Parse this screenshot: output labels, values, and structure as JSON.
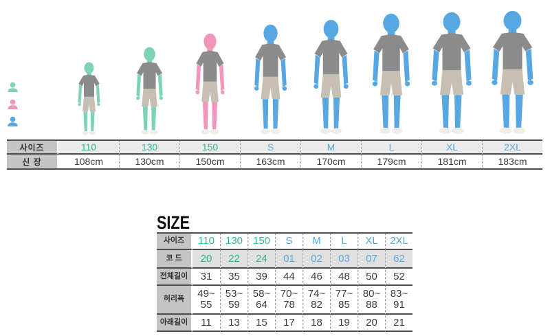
{
  "legend": {
    "items": [
      {
        "label": "아동모델",
        "icon": "child-model-icon",
        "color": "#7ed3b6"
      },
      {
        "label": "여성모델",
        "icon": "female-model-icon",
        "color": "#f395ba"
      },
      {
        "label": "남성모델",
        "icon": "male-model-icon",
        "color": "#57a7e2"
      }
    ]
  },
  "models": [
    {
      "size": "110",
      "height_cm": 108,
      "type": "child"
    },
    {
      "size": "130",
      "height_cm": 130,
      "type": "child"
    },
    {
      "size": "150",
      "height_cm": 150,
      "type": "female"
    },
    {
      "size": "S",
      "height_cm": 163,
      "type": "male"
    },
    {
      "size": "M",
      "height_cm": 170,
      "type": "male"
    },
    {
      "size": "L",
      "height_cm": 179,
      "type": "male"
    },
    {
      "size": "XL",
      "height_cm": 181,
      "type": "male"
    },
    {
      "size": "2XL",
      "height_cm": 183,
      "type": "male"
    }
  ],
  "height_table": {
    "size_row_label": "사이즈",
    "height_row_label": "신 장",
    "sizes": [
      "110",
      "130",
      "150",
      "S",
      "M",
      "L",
      "XL",
      "2XL"
    ],
    "heights": [
      "108cm",
      "130cm",
      "150cm",
      "163cm",
      "170cm",
      "179cm",
      "181cm",
      "183cm"
    ]
  },
  "size_section": {
    "title": "SIZE",
    "table": {
      "header_label": "사이즈",
      "sizes": [
        "110",
        "130",
        "150",
        "S",
        "M",
        "L",
        "XL",
        "2XL"
      ],
      "rows": [
        {
          "label": "코 드",
          "shaded": true,
          "colored": true,
          "values": [
            "20",
            "22",
            "24",
            "01",
            "02",
            "03",
            "07",
            "62"
          ]
        },
        {
          "label": "전체길이",
          "shaded": false,
          "colored": false,
          "values": [
            "31",
            "35",
            "39",
            "44",
            "46",
            "48",
            "50",
            "52"
          ]
        },
        {
          "label": "허리폭",
          "shaded": false,
          "colored": false,
          "values": [
            "49~\n55",
            "53~\n59",
            "58~\n64",
            "70~\n78",
            "74~\n82",
            "77~\n85",
            "80~\n88",
            "83~\n91"
          ]
        },
        {
          "label": "아래길이",
          "shaded": false,
          "colored": false,
          "values": [
            "11",
            "13",
            "15",
            "17",
            "18",
            "19",
            "20",
            "21"
          ]
        }
      ]
    }
  },
  "colors": {
    "child_skin": "#7ed3b6",
    "female_skin": "#f395ba",
    "male_skin": "#57a7e2",
    "teal_text": "#2eb795",
    "blue_text": "#56a9dd",
    "shirt": "#8b8b8b",
    "shorts": "#c7c0b2",
    "shoes": "#f0ede7"
  }
}
